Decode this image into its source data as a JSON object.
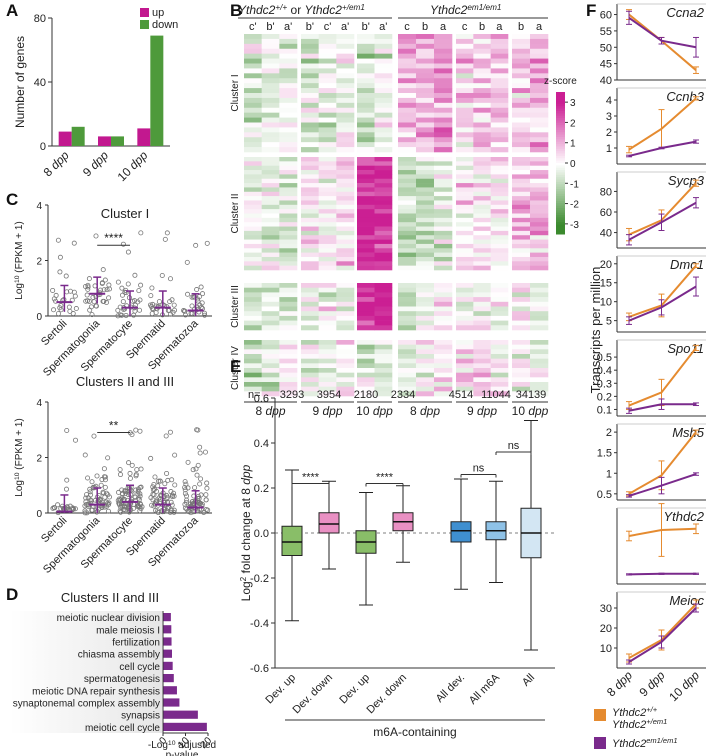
{
  "figure": {
    "panel_labels": [
      "A",
      "B",
      "C",
      "D",
      "E",
      "F"
    ],
    "colors": {
      "up": "#c2188f",
      "down": "#4e9a3b",
      "magenta_strong": "#cb1f93",
      "green_strong": "#3b8a2e",
      "orange": "#e58b30",
      "purple": "#7a2a8c",
      "dev_up_box": "#89be68",
      "dev_down_box": "#e990c3",
      "all_dev_box": "#3f8fd0",
      "all_m6a_box": "#8fc2e7",
      "all_box": "#d3e6f3"
    }
  },
  "chart_data": [
    {
      "id": "A",
      "type": "bar",
      "ylabel": "Number of genes",
      "yticks": [
        "0",
        "40",
        "80"
      ],
      "ylim": [
        0,
        80
      ],
      "categories": [
        "8 dpp",
        "9 dpp",
        "10 dpp"
      ],
      "category_labels": [
        [
          "8 ",
          ""
        ],
        [
          "9 ",
          ""
        ],
        [
          "10 ",
          ""
        ]
      ],
      "category_italic": [
        "dpp",
        "dpp",
        "dpp"
      ],
      "legend": [
        "up",
        "down"
      ],
      "series": [
        {
          "name": "up",
          "values": [
            9,
            6,
            11
          ]
        },
        {
          "name": "down",
          "values": [
            12,
            6,
            69
          ]
        }
      ]
    },
    {
      "id": "B",
      "type": "heatmap",
      "group_header_left": "Ythdc2",
      "group_header_left_sup1": "+/+",
      "group_header_left_mid": " or ",
      "group_header_left2": "Ythdc2",
      "group_header_left_sup2": "+/em1",
      "group_header_right": "Ythdc2",
      "group_header_right_sup": "em1/em1",
      "columns_wt": [
        "c'",
        "b'",
        "a'",
        "b'",
        "c'",
        "a'",
        "b'",
        "a'"
      ],
      "columns_mut": [
        "c",
        "b",
        "a",
        "c",
        "b",
        "a",
        "b",
        "a"
      ],
      "clusters": [
        "Cluster I",
        "Cluster II",
        "Cluster III",
        "Cluster IV"
      ],
      "timepoints": [
        "8 dpp",
        "9 dpp",
        "10 dpp",
        "8 dpp",
        "9 dpp",
        "10 dpp"
      ],
      "colorbar": {
        "title": "z-score",
        "ticks": [
          "3",
          "2",
          "1",
          "0",
          "-1",
          "-2",
          "-3"
        ],
        "range": [
          -3,
          3
        ]
      }
    },
    {
      "id": "C",
      "type": "scatter",
      "ylabel": "Log10 (FPKM + 1)",
      "yticks": [
        "0",
        "2",
        "4"
      ],
      "ylim": [
        0,
        4
      ],
      "categories": [
        "Sertoli",
        "Spermatogonia",
        "Spermatocyte",
        "Spermatid",
        "Spermatozoa"
      ],
      "subplots": [
        {
          "title": "Cluster I",
          "medians": [
            0.5,
            0.8,
            0.3,
            0.3,
            0.2
          ],
          "significance": "****",
          "sig_between": [
            1,
            2
          ]
        },
        {
          "title": "Clusters II and III",
          "medians": [
            0.05,
            0.3,
            0.4,
            0.3,
            0.2
          ],
          "significance": "**",
          "sig_between": [
            1,
            2
          ]
        }
      ]
    },
    {
      "id": "D",
      "type": "bar",
      "orientation": "horizontal",
      "title": "Clusters II and III",
      "xlabel": "-Log10 adjusted p-value",
      "xticks": [
        "0",
        "10",
        "20"
      ],
      "xlim": [
        0,
        20
      ],
      "categories": [
        "meiotic nuclear division",
        "male meiosis I",
        "fertilization",
        "chiasma assembly",
        "cell cycle",
        "spermatogenesis",
        "meiotic DNA repair synthesis",
        "synaptonemal complex assembly",
        "synapsis",
        "meiotic cell cycle"
      ],
      "values": [
        3.5,
        3.7,
        3.8,
        4.0,
        4.3,
        4.8,
        6.2,
        7.3,
        15.5,
        19.5
      ]
    },
    {
      "id": "E",
      "type": "box",
      "ylabel": "Log2 fold change at 8 dpp",
      "yticks": [
        "0.6",
        "0.4",
        "0.2",
        "0.0",
        "-0.2",
        "-0.4",
        "-0.6"
      ],
      "ylim": [
        -0.6,
        0.6
      ],
      "n_label": "n=",
      "categories": [
        "Dev. up",
        "Dev. down",
        "Dev. up",
        "Dev. down",
        "All dev.",
        "All m6A",
        "All"
      ],
      "n": [
        "3293",
        "3954",
        "2180",
        "2334",
        "4514",
        "11044",
        "34139"
      ],
      "boxes": [
        {
          "min": -0.39,
          "q1": -0.1,
          "median": -0.04,
          "q3": 0.03,
          "max": 0.28
        },
        {
          "min": -0.16,
          "q1": 0.0,
          "median": 0.04,
          "q3": 0.09,
          "max": 0.23
        },
        {
          "min": -0.32,
          "q1": -0.09,
          "median": -0.04,
          "q3": 0.01,
          "max": 0.18
        },
        {
          "min": -0.13,
          "q1": 0.01,
          "median": 0.05,
          "q3": 0.09,
          "max": 0.21
        },
        {
          "min": -0.25,
          "q1": -0.04,
          "median": 0.01,
          "q3": 0.05,
          "max": 0.24
        },
        {
          "min": -0.22,
          "q1": -0.03,
          "median": 0.01,
          "q3": 0.05,
          "max": 0.23
        },
        {
          "min": -0.52,
          "q1": -0.11,
          "median": 0.0,
          "q3": 0.11,
          "max": 0.5
        }
      ],
      "significance": [
        {
          "between": [
            0,
            1
          ],
          "label": "****"
        },
        {
          "between": [
            2,
            3
          ],
          "label": "****"
        },
        {
          "between": [
            4,
            5
          ],
          "label": "ns"
        },
        {
          "between": [
            5,
            6
          ],
          "label": "ns"
        }
      ],
      "group_label": "m6A-containing"
    },
    {
      "id": "F",
      "type": "line",
      "ylabel": "Transcripts per million",
      "categories": [
        "8 dpp",
        "9 dpp",
        "10 dpp"
      ],
      "legend": [
        {
          "name": "Ythdc2+/+ / Ythdc2+/em1",
          "color": "orange"
        },
        {
          "name": "Ythdc2em1/em1",
          "color": "purple"
        }
      ],
      "legend_text": {
        "wt1": "Ythdc2",
        "wt1_sup": "+/+",
        "wt2": "Ythdc2",
        "wt2_sup": "+/em1",
        "mut": "Ythdc2",
        "mut_sup": "em1/em1"
      },
      "genes": [
        {
          "gene": "Ccna2",
          "yticks": [
            40,
            45,
            50,
            55,
            60
          ],
          "ylim": [
            40,
            62
          ],
          "wt": [
            60,
            52,
            43
          ],
          "wt_err": [
            1.5,
            1,
            1
          ],
          "mut": [
            59,
            52,
            50
          ],
          "mut_err": [
            2,
            1,
            3
          ]
        },
        {
          "gene": "Ccnb3",
          "yticks": [
            1,
            2,
            3,
            4
          ],
          "ylim": [
            0,
            4.5
          ],
          "wt": [
            0.9,
            2.2,
            4.1
          ],
          "wt_err": [
            0.2,
            1.2,
            0.1
          ],
          "mut": [
            0.5,
            1.0,
            1.4
          ],
          "mut_err": [
            0.05,
            0.05,
            0.1
          ]
        },
        {
          "gene": "Sycp3",
          "yticks": [
            40,
            60,
            80
          ],
          "ylim": [
            25,
            95
          ],
          "wt": [
            38,
            52,
            88
          ],
          "wt_err": [
            6,
            10,
            3
          ],
          "mut": [
            33,
            50,
            69
          ],
          "mut_err": [
            5,
            8,
            5
          ]
        },
        {
          "gene": "Dmc1",
          "yticks": [
            5,
            10,
            15,
            20
          ],
          "ylim": [
            2,
            21
          ],
          "wt": [
            6,
            9,
            19.5
          ],
          "wt_err": [
            1,
            3,
            0.5
          ],
          "mut": [
            5,
            8.5,
            14
          ],
          "mut_err": [
            1,
            2,
            2.5
          ]
        },
        {
          "gene": "Spo11",
          "yticks": [
            0.1,
            0.2,
            0.3,
            0.4,
            0.5
          ],
          "ylim": [
            0.05,
            0.6
          ],
          "wt": [
            0.13,
            0.23,
            0.57
          ],
          "wt_err": [
            0.03,
            0.1,
            0.02
          ],
          "mut": [
            0.09,
            0.14,
            0.14
          ],
          "mut_err": [
            0.02,
            0.04,
            0.01
          ]
        },
        {
          "gene": "Msh5",
          "yticks": [
            0.5,
            1.0,
            1.5,
            2.0
          ],
          "ylim": [
            0.35,
            2.1
          ],
          "wt": [
            0.5,
            0.95,
            2.0
          ],
          "wt_err": [
            0.05,
            0.35,
            0.05
          ],
          "mut": [
            0.45,
            0.7,
            0.98
          ],
          "mut_err": [
            0.03,
            0.2,
            0.03
          ]
        },
        {
          "gene": "Ythdc2",
          "yticks": [],
          "ylim": [
            0,
            6
          ],
          "wt": [
            4.0,
            4.5,
            4.6
          ],
          "wt_err": [
            0.4,
            2.2,
            0.4
          ],
          "mut": [
            0.8,
            0.85,
            0.85
          ],
          "mut_err": [
            0.05,
            0.05,
            0.05
          ]
        },
        {
          "gene": "Meioc",
          "yticks": [
            10,
            20,
            30
          ],
          "ylim": [
            0,
            36
          ],
          "wt": [
            5,
            14,
            32
          ],
          "wt_err": [
            2,
            5,
            2
          ],
          "mut": [
            3,
            13,
            30
          ],
          "mut_err": [
            1,
            3,
            2
          ]
        }
      ]
    }
  ]
}
